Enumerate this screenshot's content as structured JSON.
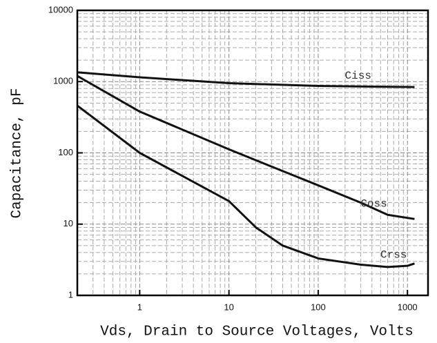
{
  "chart_data": {
    "type": "line",
    "x_label": "Vds, Drain to Source Voltages, Volts",
    "y_label": "Capacitance, pF",
    "xscale": "log",
    "yscale": "log",
    "grid": true,
    "xlim": [
      0.2,
      1700
    ],
    "ylim": [
      1,
      10000
    ],
    "xticks": [
      1,
      10,
      100,
      1000
    ],
    "yticks": [
      1,
      10,
      100,
      1000,
      10000
    ],
    "series": [
      {
        "name": "Ciss",
        "color": "#111111",
        "x": [
          0.2,
          1,
          10,
          100,
          400,
          1200
        ],
        "values": [
          1350,
          1150,
          950,
          870,
          850,
          840
        ]
      },
      {
        "name": "Coss",
        "color": "#111111",
        "x": [
          0.2,
          1,
          10,
          100,
          300,
          600,
          1200
        ],
        "values": [
          1200,
          380,
          112,
          35,
          20,
          13.5,
          11.8
        ]
      },
      {
        "name": "Crss",
        "color": "#111111",
        "x": [
          0.2,
          1,
          10,
          20,
          40,
          100,
          300,
          600,
          1000,
          1200
        ],
        "values": [
          460,
          100,
          21,
          9,
          5,
          3.3,
          2.7,
          2.5,
          2.6,
          2.8
        ]
      }
    ]
  }
}
